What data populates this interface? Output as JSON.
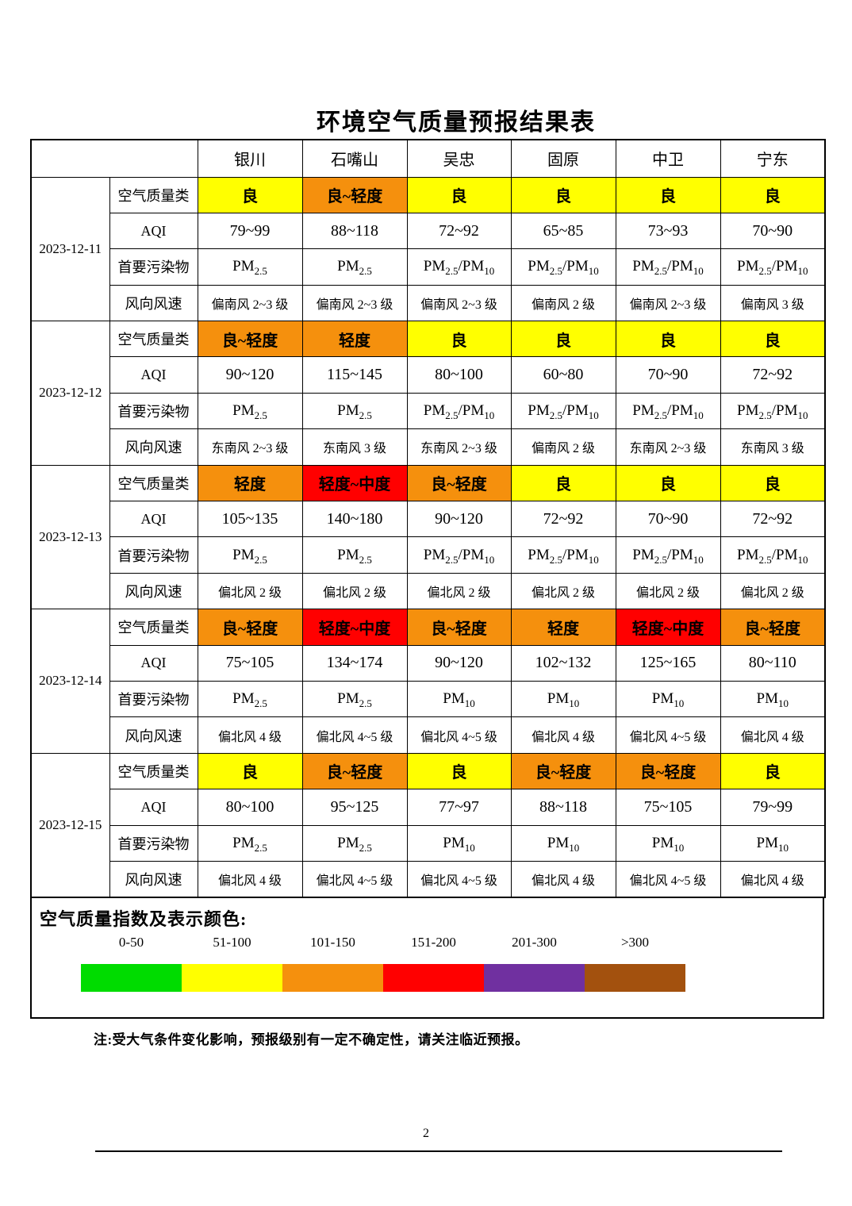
{
  "page": {
    "title": "环境空气质量预报结果表",
    "note": "注:受大气条件变化影响，预报级别有一定不确定性，请关注临近预报。",
    "page_number": "2"
  },
  "table": {
    "cities": [
      "银川",
      "石嘴山",
      "吴忠",
      "固原",
      "中卫",
      "宁东"
    ],
    "row_labels": [
      "空气质量类",
      "AQI",
      "首要污染物",
      "风向风速"
    ],
    "groups": [
      {
        "date": "2023-12-11",
        "quality": [
          {
            "text": "良",
            "bg": "#FFFF00"
          },
          {
            "text": "良~轻度",
            "bg": "#F5900D"
          },
          {
            "text": "良",
            "bg": "#FFFF00"
          },
          {
            "text": "良",
            "bg": "#FFFF00"
          },
          {
            "text": "良",
            "bg": "#FFFF00"
          },
          {
            "text": "良",
            "bg": "#FFFF00"
          }
        ],
        "aqi": [
          "79~99",
          "88~118",
          "72~92",
          "65~85",
          "73~93",
          "70~90"
        ],
        "pollutant": [
          "PM2.5",
          "PM2.5",
          "PM2.5/PM10",
          "PM2.5/PM10",
          "PM2.5/PM10",
          "PM2.5/PM10"
        ],
        "wind": [
          "偏南风 2~3 级",
          "偏南风 2~3 级",
          "偏南风 2~3 级",
          "偏南风 2 级",
          "偏南风 2~3 级",
          "偏南风 3 级"
        ]
      },
      {
        "date": "2023-12-12",
        "quality": [
          {
            "text": "良~轻度",
            "bg": "#F5900D"
          },
          {
            "text": "轻度",
            "bg": "#F5900D"
          },
          {
            "text": "良",
            "bg": "#FFFF00"
          },
          {
            "text": "良",
            "bg": "#FFFF00"
          },
          {
            "text": "良",
            "bg": "#FFFF00"
          },
          {
            "text": "良",
            "bg": "#FFFF00"
          }
        ],
        "aqi": [
          "90~120",
          "115~145",
          "80~100",
          "60~80",
          "70~90",
          "72~92"
        ],
        "pollutant": [
          "PM2.5",
          "PM2.5",
          "PM2.5/PM10",
          "PM2.5/PM10",
          "PM2.5/PM10",
          "PM2.5/PM10"
        ],
        "wind": [
          "东南风 2~3 级",
          "东南风 3 级",
          "东南风 2~3 级",
          "偏南风 2 级",
          "东南风 2~3 级",
          "东南风 3 级"
        ]
      },
      {
        "date": "2023-12-13",
        "quality": [
          {
            "text": "轻度",
            "bg": "#F5900D"
          },
          {
            "text": "轻度~中度",
            "bg": "#FF0000"
          },
          {
            "text": "良~轻度",
            "bg": "#F5900D"
          },
          {
            "text": "良",
            "bg": "#FFFF00"
          },
          {
            "text": "良",
            "bg": "#FFFF00"
          },
          {
            "text": "良",
            "bg": "#FFFF00"
          }
        ],
        "aqi": [
          "105~135",
          "140~180",
          "90~120",
          "72~92",
          "70~90",
          "72~92"
        ],
        "pollutant": [
          "PM2.5",
          "PM2.5",
          "PM2.5/PM10",
          "PM2.5/PM10",
          "PM2.5/PM10",
          "PM2.5/PM10"
        ],
        "wind": [
          "偏北风 2 级",
          "偏北风 2 级",
          "偏北风 2 级",
          "偏北风 2 级",
          "偏北风 2 级",
          "偏北风 2 级"
        ]
      },
      {
        "date": "2023-12-14",
        "quality": [
          {
            "text": "良~轻度",
            "bg": "#F5900D"
          },
          {
            "text": "轻度~中度",
            "bg": "#FF0000"
          },
          {
            "text": "良~轻度",
            "bg": "#F5900D"
          },
          {
            "text": "轻度",
            "bg": "#F5900D"
          },
          {
            "text": "轻度~中度",
            "bg": "#FF0000"
          },
          {
            "text": "良~轻度",
            "bg": "#F5900D"
          }
        ],
        "aqi": [
          "75~105",
          "134~174",
          "90~120",
          "102~132",
          "125~165",
          "80~110"
        ],
        "pollutant": [
          "PM2.5",
          "PM2.5",
          "PM10",
          "PM10",
          "PM10",
          "PM10"
        ],
        "wind": [
          "偏北风 4 级",
          "偏北风 4~5 级",
          "偏北风 4~5 级",
          "偏北风 4 级",
          "偏北风 4~5 级",
          "偏北风 4 级"
        ]
      },
      {
        "date": "2023-12-15",
        "quality": [
          {
            "text": "良",
            "bg": "#FFFF00"
          },
          {
            "text": "良~轻度",
            "bg": "#F5900D"
          },
          {
            "text": "良",
            "bg": "#FFFF00"
          },
          {
            "text": "良~轻度",
            "bg": "#F5900D"
          },
          {
            "text": "良~轻度",
            "bg": "#F5900D"
          },
          {
            "text": "良",
            "bg": "#FFFF00"
          }
        ],
        "aqi": [
          "80~100",
          "95~125",
          "77~97",
          "88~118",
          "75~105",
          "79~99"
        ],
        "pollutant": [
          "PM2.5",
          "PM2.5",
          "PM10",
          "PM10",
          "PM10",
          "PM10"
        ],
        "wind": [
          "偏北风 4 级",
          "偏北风 4~5 级",
          "偏北风 4~5 级",
          "偏北风 4 级",
          "偏北风 4~5 级",
          "偏北风 4 级"
        ]
      }
    ]
  },
  "legend": {
    "title": "空气质量指数及表示颜色:",
    "ranges": [
      "0-50",
      "51-100",
      "101-150",
      "151-200",
      "201-300",
      ">300"
    ],
    "colors": [
      "#00DC00",
      "#FFFF00",
      "#F5900D",
      "#FF0000",
      "#7030A0",
      "#A3510E"
    ]
  }
}
